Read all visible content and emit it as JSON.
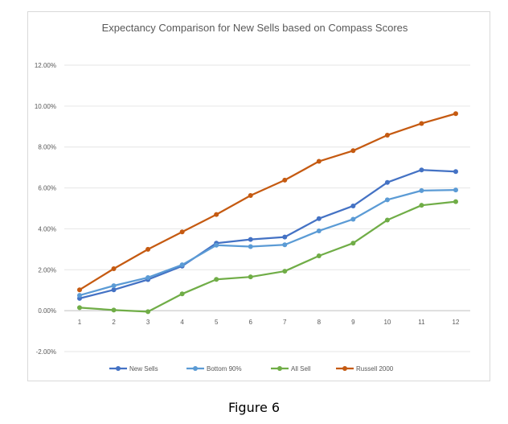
{
  "chart_data": {
    "type": "line",
    "title": "Expectancy Comparison for New Sells based on Compass Scores",
    "categories": [
      "1",
      "2",
      "3",
      "4",
      "5",
      "6",
      "7",
      "8",
      "9",
      "10",
      "11",
      "12"
    ],
    "ylim": [
      -2,
      12
    ],
    "yticks": [
      -2,
      0,
      2,
      4,
      6,
      8,
      10,
      12
    ],
    "ytick_labels": [
      "-2.00%",
      "0.00%",
      "2.00%",
      "4.00%",
      "6.00%",
      "8.00%",
      "10.00%",
      "12.00%"
    ],
    "grid": true,
    "legend_position": "bottom",
    "series": [
      {
        "name": "New Sells",
        "color": "#4472c4",
        "values": [
          0.6,
          1.02,
          1.52,
          2.18,
          3.3,
          3.48,
          3.6,
          4.5,
          5.12,
          6.27,
          6.88,
          6.8
        ]
      },
      {
        "name": "Bottom 90%",
        "color": "#5b9bd5",
        "values": [
          0.75,
          1.22,
          1.62,
          2.24,
          3.2,
          3.13,
          3.22,
          3.9,
          4.47,
          5.42,
          5.87,
          5.9
        ]
      },
      {
        "name": "All Sell",
        "color": "#70ad47",
        "values": [
          0.15,
          0.03,
          -0.05,
          0.82,
          1.53,
          1.65,
          1.93,
          2.68,
          3.3,
          4.43,
          5.15,
          5.33
        ]
      },
      {
        "name": "Russell 2000",
        "color": "#c55a11",
        "values": [
          1.02,
          2.05,
          3.0,
          3.85,
          4.7,
          5.63,
          6.38,
          7.3,
          7.82,
          8.58,
          9.15,
          9.63
        ]
      }
    ]
  },
  "caption": "Figure 6"
}
